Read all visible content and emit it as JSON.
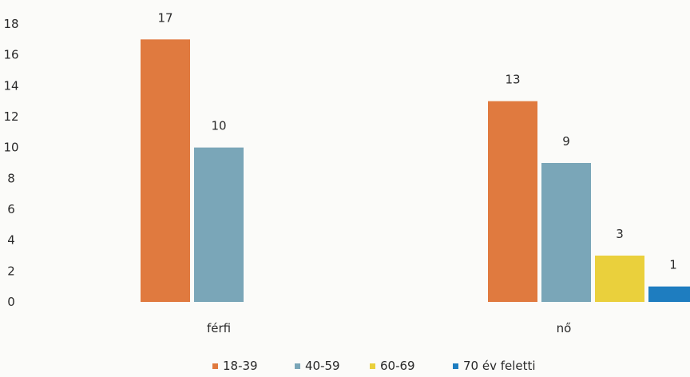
{
  "chart_data": {
    "type": "bar",
    "categories": [
      "férfi",
      "nő"
    ],
    "series": [
      {
        "name": "18-39",
        "values": [
          17,
          13
        ],
        "color": "#e07a3f"
      },
      {
        "name": "40-59",
        "values": [
          10,
          9
        ],
        "color": "#7aa6b8"
      },
      {
        "name": "60-69",
        "values": [
          null,
          3
        ],
        "color": "#ead03c"
      },
      {
        "name": "70 év feletti",
        "values": [
          null,
          1
        ],
        "color": "#1e7dc0"
      }
    ],
    "yticks": [
      0,
      2,
      4,
      6,
      8,
      10,
      12,
      14,
      16,
      18
    ],
    "ylim": [
      0,
      18
    ],
    "legend": "bottom",
    "grid": false
  }
}
